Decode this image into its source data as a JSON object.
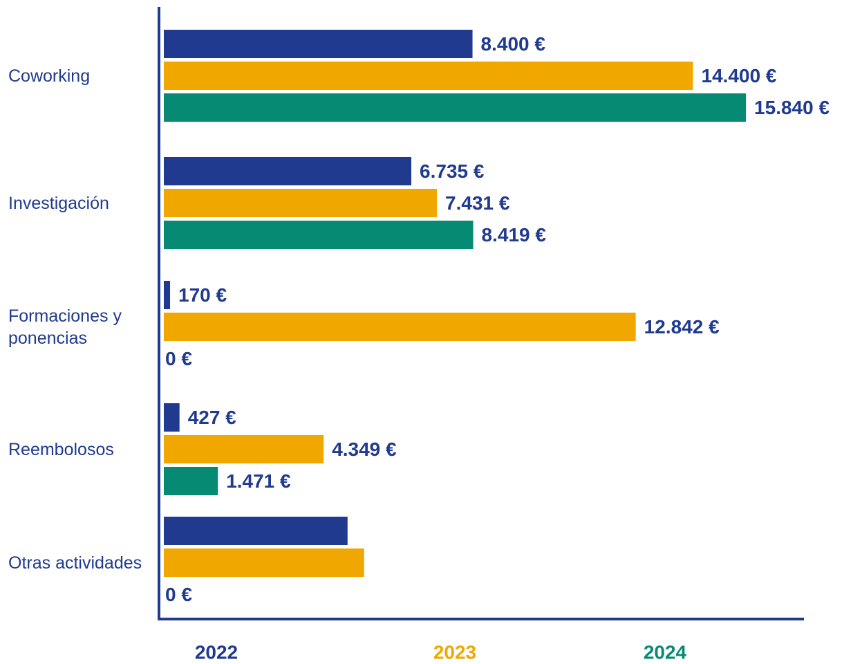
{
  "chart_data": {
    "type": "bar",
    "orientation": "horizontal",
    "categories": [
      "Coworking",
      "Investigación",
      "Formaciones y ponencias",
      "Reembolosos",
      "Otras actividades"
    ],
    "series": [
      {
        "name": "2022",
        "color": "#1f3a8f",
        "values": [
          8400,
          6735,
          170,
          427,
          5000
        ],
        "value_labels": [
          "8.400 €",
          "6.735 €",
          "170 €",
          "427 €",
          null
        ]
      },
      {
        "name": "2023",
        "color": "#f0a800",
        "values": [
          14400,
          7431,
          12842,
          4349,
          5450
        ],
        "value_labels": [
          "14.400 €",
          "7.431 €",
          "12.842 €",
          "4.349 €",
          null
        ]
      },
      {
        "name": "2024",
        "color": "#078a74",
        "values": [
          15840,
          8419,
          0,
          1471,
          0
        ],
        "value_labels": [
          "15.840 €",
          "8.419 €",
          "0 €",
          "1.471 €",
          "0 €"
        ]
      }
    ],
    "xlim": [
      0,
      17500
    ]
  }
}
